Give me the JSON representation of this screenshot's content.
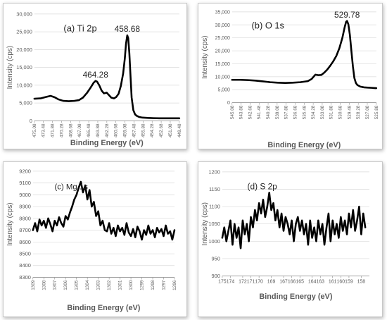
{
  "chart_data": [
    {
      "type": "line",
      "panel_label": "(a) Ti 2p",
      "xlabel": "Binding Energy (eV)",
      "ylabel": "Intensity (cps)",
      "x_reversed": true,
      "xlim": [
        475.08,
        449.48
      ],
      "ylim": [
        0,
        30000
      ],
      "yticks": [
        0,
        5000,
        10000,
        15000,
        20000,
        25000,
        30000
      ],
      "ytick_labels": [
        "0",
        "5,000",
        "10,000",
        "15,000",
        "20,000",
        "25,000",
        "30,000"
      ],
      "xticks": [
        475.08,
        473.48,
        471.88,
        470.28,
        468.68,
        467.08,
        465.48,
        463.88,
        462.28,
        460.68,
        459.08,
        457.48,
        455.88,
        454.28,
        452.68,
        451.08,
        449.48
      ],
      "xtick_labels": [
        "475.08",
        "473.48",
        "471.88",
        "470.28",
        "468.68",
        "467.08",
        "465.48",
        "463.88",
        "462.28",
        "460.68",
        "459.08",
        "457.48",
        "455.88",
        "454.28",
        "452.68",
        "451.08",
        "449.48"
      ],
      "annotations": [
        {
          "text": "464.28",
          "x": 464.28,
          "y": 11200
        },
        {
          "text": "458.68",
          "x": 458.68,
          "y": 24000
        }
      ],
      "series": [
        {
          "x": [
            475.08,
            474.0,
            473.0,
            472.2,
            471.5,
            470.8,
            470.0,
            469.0,
            468.0,
            467.2,
            466.5,
            465.8,
            465.2,
            464.6,
            464.28,
            464.0,
            463.6,
            463.2,
            462.8,
            462.3,
            461.9,
            461.5,
            461.0,
            460.6,
            460.2,
            459.8,
            459.4,
            459.1,
            458.9,
            458.68,
            458.5,
            458.3,
            458.1,
            457.9,
            457.6,
            457.3,
            457.0,
            456.6,
            456.0,
            455.0,
            454.0,
            453.0,
            452.0,
            451.0,
            449.48
          ],
          "y": [
            6200,
            6300,
            6700,
            7000,
            6600,
            6000,
            5600,
            5500,
            5600,
            5800,
            6500,
            7800,
            9200,
            10700,
            11200,
            11000,
            9900,
            8500,
            7700,
            7900,
            7200,
            6500,
            6300,
            6700,
            7600,
            9800,
            13300,
            17500,
            21600,
            24000,
            23200,
            19000,
            12500,
            6500,
            3000,
            1800,
            1400,
            1100,
            900,
            800,
            750,
            700,
            700,
            700,
            700
          ]
        }
      ]
    },
    {
      "type": "line",
      "panel_label": "(b) O 1s",
      "xlabel": "Binding Energy (eV)",
      "ylabel": "Intensity (cps)",
      "x_reversed": true,
      "xlim": [
        545.08,
        525.88
      ],
      "ylim": [
        0,
        35000
      ],
      "yticks": [
        0,
        5000,
        10000,
        15000,
        20000,
        25000,
        30000,
        35000
      ],
      "ytick_labels": [
        "0",
        "5,000",
        "10,000",
        "15,000",
        "20,000",
        "25,000",
        "30,000",
        "35,000"
      ],
      "xticks": [
        545.08,
        543.88,
        542.68,
        541.48,
        540.28,
        539.08,
        537.88,
        536.68,
        535.48,
        534.28,
        533.08,
        531.88,
        530.68,
        529.48,
        528.28,
        527.08,
        525.88
      ],
      "xtick_labels": [
        "545.08",
        "543.88",
        "542.68",
        "541.48",
        "540.28",
        "539.08",
        "537.88",
        "536.68",
        "535.48",
        "534.28",
        "533.08",
        "531.88",
        "530.68",
        "529.48",
        "528.28",
        "527.08",
        "525.88"
      ],
      "annotations": [
        {
          "text": "529.78",
          "x": 529.78,
          "y": 31500
        }
      ],
      "series": [
        {
          "x": [
            545.08,
            544.0,
            543.0,
            542.0,
            541.0,
            540.0,
            539.0,
            538.0,
            537.0,
            536.0,
            535.0,
            534.5,
            534.0,
            533.6,
            533.2,
            532.8,
            532.4,
            532.0,
            531.6,
            531.2,
            530.8,
            530.4,
            530.1,
            529.9,
            529.78,
            529.6,
            529.4,
            529.2,
            529.0,
            528.8,
            528.6,
            528.4,
            528.0,
            527.5,
            527.0,
            526.5,
            525.88
          ],
          "y": [
            8800,
            8800,
            8700,
            8500,
            8200,
            7900,
            7700,
            7600,
            7700,
            7900,
            8300,
            9100,
            10800,
            10600,
            10700,
            11600,
            12800,
            14300,
            16000,
            18000,
            21000,
            25000,
            29000,
            31200,
            31500,
            30200,
            26000,
            20000,
            14000,
            9500,
            7600,
            6800,
            6200,
            5900,
            5800,
            5700,
            5600
          ]
        }
      ]
    },
    {
      "type": "line",
      "panel_label": "(c) Mg 1s",
      "xlabel": "Binding Energy (eV)",
      "ylabel": "Intensity (cps)",
      "x_reversed": true,
      "xlim": [
        1309,
        1296
      ],
      "ylim": [
        8300,
        9200
      ],
      "yticks": [
        8300,
        8400,
        8500,
        8600,
        8700,
        8800,
        8900,
        9000,
        9100,
        9200
      ],
      "ytick_labels": [
        "8300",
        "8400",
        "8500",
        "8600",
        "8700",
        "8800",
        "8900",
        "9000",
        "9100",
        "9200"
      ],
      "xticks": [
        1309,
        1308,
        1307,
        1306,
        1305,
        1304,
        1303,
        1302,
        1301,
        1300,
        1299,
        1298,
        1297,
        1296
      ],
      "xtick_labels": [
        "1309",
        "1308",
        "1307",
        "1306",
        "1305",
        "1304",
        "1303",
        "1302",
        "1301",
        "1300",
        "1299",
        "1298",
        "1297",
        "1296"
      ],
      "series": [
        {
          "x": [
            1309.0,
            1308.8,
            1308.6,
            1308.4,
            1308.2,
            1308.0,
            1307.8,
            1307.6,
            1307.4,
            1307.2,
            1307.0,
            1306.8,
            1306.6,
            1306.4,
            1306.2,
            1306.0,
            1305.8,
            1305.6,
            1305.4,
            1305.2,
            1305.0,
            1304.8,
            1304.6,
            1304.4,
            1304.2,
            1304.0,
            1303.8,
            1303.6,
            1303.4,
            1303.2,
            1303.0,
            1302.8,
            1302.6,
            1302.4,
            1302.2,
            1302.0,
            1301.8,
            1301.6,
            1301.4,
            1301.2,
            1301.0,
            1300.8,
            1300.6,
            1300.4,
            1300.2,
            1300.0,
            1299.8,
            1299.6,
            1299.4,
            1299.2,
            1299.0,
            1298.8,
            1298.6,
            1298.4,
            1298.2,
            1298.0,
            1297.8,
            1297.6,
            1297.4,
            1297.2,
            1297.0,
            1296.8,
            1296.6,
            1296.4,
            1296.2,
            1296.0
          ],
          "y": [
            8700,
            8760,
            8690,
            8790,
            8740,
            8780,
            8720,
            8800,
            8750,
            8690,
            8780,
            8740,
            8810,
            8760,
            8730,
            8820,
            8790,
            8850,
            8900,
            8960,
            9000,
            9060,
            9110,
            9020,
            9080,
            8960,
            9040,
            8900,
            8940,
            8820,
            8860,
            8740,
            8780,
            8700,
            8690,
            8760,
            8670,
            8720,
            8650,
            8740,
            8690,
            8720,
            8660,
            8760,
            8680,
            8650,
            8710,
            8640,
            8730,
            8690,
            8620,
            8700,
            8660,
            8740,
            8670,
            8700,
            8640,
            8720,
            8680,
            8710,
            8650,
            8740,
            8670,
            8690,
            8620,
            8700
          ]
        }
      ]
    },
    {
      "type": "line",
      "panel_label": "(d) S 2p",
      "xlabel": "Binding Energy (eV)",
      "ylabel": "Intensity (cps)",
      "x_reversed": true,
      "xlim": [
        175,
        157
      ],
      "ylim": [
        900,
        1200
      ],
      "yticks": [
        900,
        950,
        1000,
        1050,
        1100,
        1150,
        1200
      ],
      "ytick_labels": [
        "900",
        "950",
        "1000",
        "1050",
        "1100",
        "1150",
        "1200"
      ],
      "xticks": [
        175,
        174,
        173,
        172,
        171,
        170,
        169,
        168,
        167,
        166,
        165,
        164,
        163,
        162,
        161,
        160,
        159,
        158
      ],
      "xtick_labels": [
        "175",
        "174",
        "172",
        "171",
        "170",
        "169",
        "167",
        "166",
        "165",
        "164",
        "163",
        "161",
        "160",
        "159",
        "158"
      ],
      "xtick_label_positions": [
        175,
        174,
        172.5,
        171.5,
        170.5,
        169,
        167.5,
        166.5,
        165.5,
        164,
        163,
        161.5,
        160.5,
        159.5,
        158
      ],
      "series": [
        {
          "x": [
            175.0,
            174.75,
            174.5,
            174.25,
            174.0,
            173.75,
            173.5,
            173.25,
            173.0,
            172.75,
            172.5,
            172.25,
            172.0,
            171.75,
            171.5,
            171.25,
            171.0,
            170.75,
            170.5,
            170.25,
            170.0,
            169.75,
            169.5,
            169.25,
            169.0,
            168.75,
            168.5,
            168.25,
            168.0,
            167.75,
            167.5,
            167.25,
            167.0,
            166.75,
            166.5,
            166.25,
            166.0,
            165.75,
            165.5,
            165.25,
            165.0,
            164.75,
            164.5,
            164.25,
            164.0,
            163.75,
            163.5,
            163.25,
            163.0,
            162.75,
            162.5,
            162.25,
            162.0,
            161.75,
            161.5,
            161.25,
            161.0,
            160.75,
            160.5,
            160.25,
            160.0,
            159.75,
            159.5,
            159.25,
            159.0,
            158.75,
            158.5,
            158.25,
            158.0,
            157.75,
            157.5
          ],
          "y": [
            1010,
            1040,
            1000,
            1030,
            1060,
            990,
            1050,
            1010,
            1040,
            980,
            1060,
            1020,
            1050,
            1000,
            1070,
            1040,
            1090,
            1060,
            1110,
            1080,
            1120,
            1070,
            1100,
            1140,
            1090,
            1110,
            1060,
            1090,
            1040,
            1080,
            1030,
            1070,
            1050,
            1020,
            1060,
            1000,
            1050,
            1070,
            1030,
            1060,
            1020,
            1050,
            990,
            1060,
            1010,
            1040,
            1000,
            1060,
            1020,
            1050,
            990,
            1040,
            1080,
            1000,
            1060,
            1020,
            1050,
            1010,
            1070,
            1030,
            1060,
            1020,
            1080,
            1040,
            1090,
            1030,
            1060,
            1100,
            1020,
            1080,
            1040
          ]
        }
      ]
    }
  ]
}
